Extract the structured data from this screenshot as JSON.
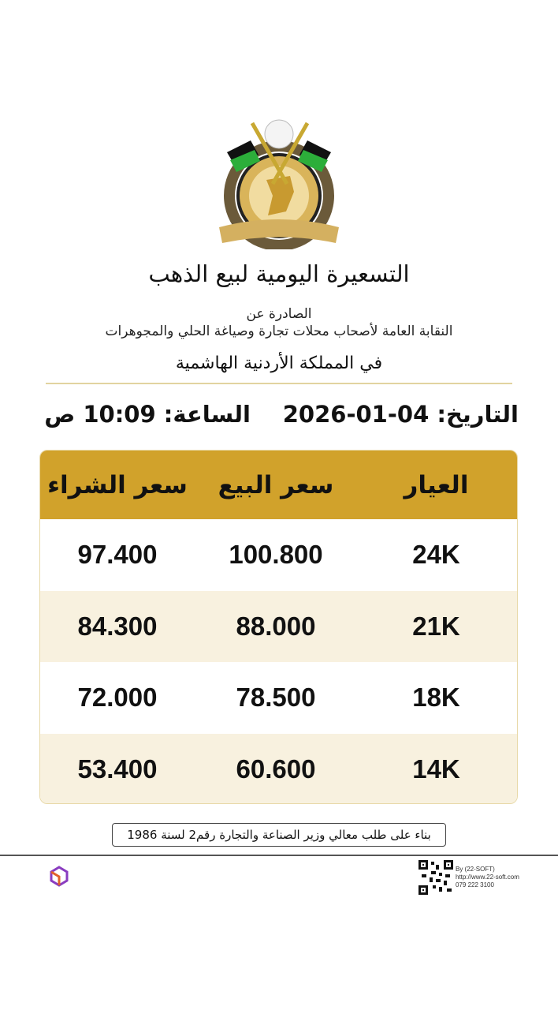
{
  "header": {
    "title": "التسعيرة اليومية لبيع الذهب",
    "issued_by": "الصادرة عن",
    "syndicate": "النقابة العامة لأصحاب محلات تجارة وصياغة الحلي والمجوهرات",
    "kingdom": "في المملكة الأردنية الهاشمية",
    "logo_text": "النقابة العامة لأصحاب محلات تجارة وصياغة الحلي والمجوهرات"
  },
  "datetime": {
    "date_label": "التاريخ:",
    "date": "04-01-2026",
    "time_label": "الساعة:",
    "time": "10:09 ص"
  },
  "table": {
    "columns": [
      "العيار",
      "سعر البيع",
      "سعر الشراء"
    ],
    "rows": [
      {
        "karat": "24K",
        "sell": "100.800",
        "buy": "97.400"
      },
      {
        "karat": "21K",
        "sell": "88.000",
        "buy": "84.300"
      },
      {
        "karat": "18K",
        "sell": "78.500",
        "buy": "72.000"
      },
      {
        "karat": "14K",
        "sell": "60.600",
        "buy": "53.400"
      }
    ]
  },
  "footer": {
    "note": "بناء على طلب معالي وزير الصناعة والتجارة رقم2 لسنة 1986",
    "company_by": "By (22-SOFT)",
    "company_url": "http://www.22-soft.com",
    "company_phone": "079 222 3100",
    "brand_logo_text": "22-soft"
  },
  "colors": {
    "header_gold": "#D1A22B",
    "alt_row": "#F8F1DF"
  },
  "icons": [
    "syndicate-logo",
    "qr-code",
    "22-soft-logo"
  ]
}
